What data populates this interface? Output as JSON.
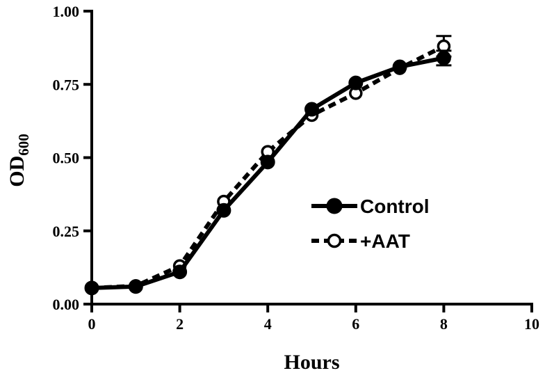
{
  "chart_data": {
    "type": "line",
    "title": "",
    "xlabel": "Hours",
    "ylabel_main": "OD",
    "ylabel_sub": "600",
    "xlim": [
      0,
      10
    ],
    "ylim": [
      0,
      1
    ],
    "x_ticks": [
      0,
      2,
      4,
      6,
      8,
      10
    ],
    "x_tick_labels": [
      "0",
      "2",
      "4",
      "6",
      "8",
      "10"
    ],
    "y_ticks": [
      0,
      0.25,
      0.5,
      0.75,
      1.0
    ],
    "y_tick_labels": [
      "0.00",
      "0.25",
      "0.50",
      "0.75",
      "1.00"
    ],
    "grid": false,
    "legend_position": "center-right",
    "series": [
      {
        "name": "Control",
        "style": "solid",
        "marker": "filled-circle",
        "color": "#000000",
        "x": [
          0,
          1,
          2,
          3,
          4,
          5,
          6,
          7,
          8
        ],
        "y": [
          0.055,
          0.06,
          0.11,
          0.32,
          0.485,
          0.665,
          0.755,
          0.81,
          0.84
        ],
        "error": [
          0,
          0,
          0,
          0,
          0,
          0,
          0,
          0,
          0.025
        ]
      },
      {
        "name": "+AAT",
        "style": "dashed",
        "marker": "open-circle",
        "color": "#000000",
        "x": [
          0,
          1,
          2,
          3,
          4,
          5,
          6,
          7,
          8
        ],
        "y": [
          0.055,
          0.062,
          0.13,
          0.35,
          0.52,
          0.645,
          0.72,
          0.805,
          0.88
        ],
        "error": [
          0,
          0,
          0,
          0,
          0,
          0,
          0,
          0,
          0.035
        ]
      }
    ]
  }
}
